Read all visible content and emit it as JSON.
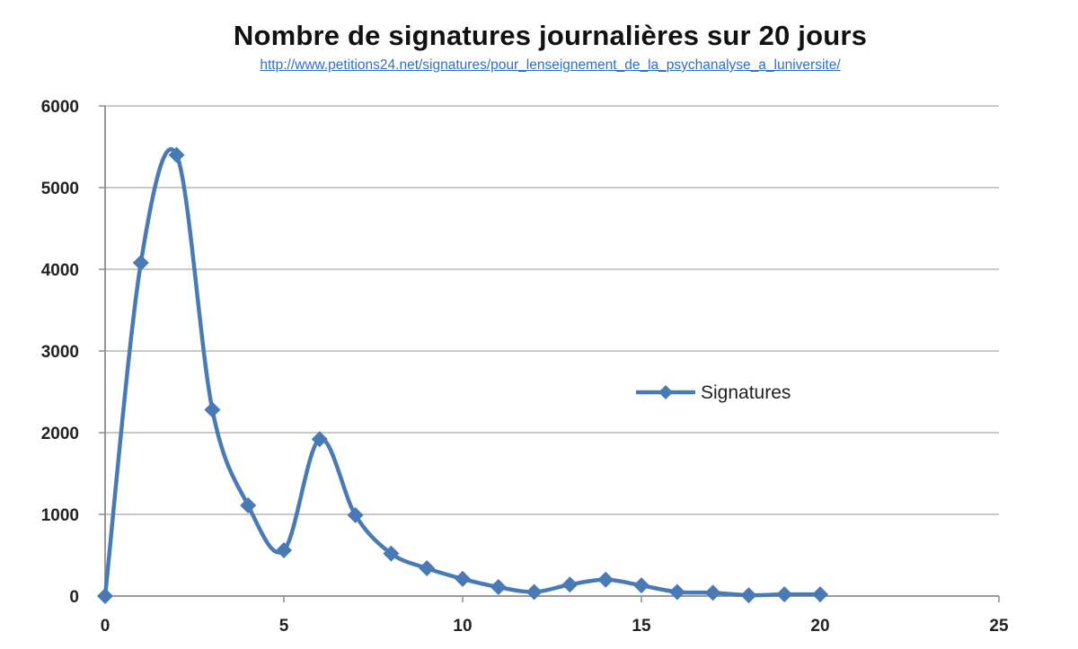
{
  "chart_data": {
    "type": "line",
    "title": "Nombre de signatures journalières sur 20  jours",
    "subtitle": "http://www.petitions24.net/signatures/pour_lenseignement_de_la_psychanalyse_a_luniversite/",
    "xlabel": "",
    "ylabel": "",
    "xlim": [
      0,
      25
    ],
    "ylim": [
      0,
      6000
    ],
    "x_ticks": [
      "0",
      "5",
      "10",
      "15",
      "20",
      "25"
    ],
    "y_ticks": [
      "0",
      "1000",
      "2000",
      "3000",
      "4000",
      "5000",
      "6000"
    ],
    "grid": "horizontal",
    "legend_position": "right",
    "smooth": true,
    "series": [
      {
        "name": "Signatures",
        "color": "#4a7ab5",
        "marker": "diamond",
        "x": [
          0,
          1,
          2,
          3,
          4,
          5,
          6,
          7,
          8,
          9,
          10,
          11,
          12,
          13,
          14,
          15,
          16,
          17,
          18,
          19,
          20
        ],
        "values": [
          0,
          4080,
          5400,
          2280,
          1110,
          560,
          1920,
          990,
          520,
          340,
          210,
          110,
          50,
          140,
          200,
          130,
          50,
          40,
          10,
          20,
          20
        ]
      }
    ]
  }
}
